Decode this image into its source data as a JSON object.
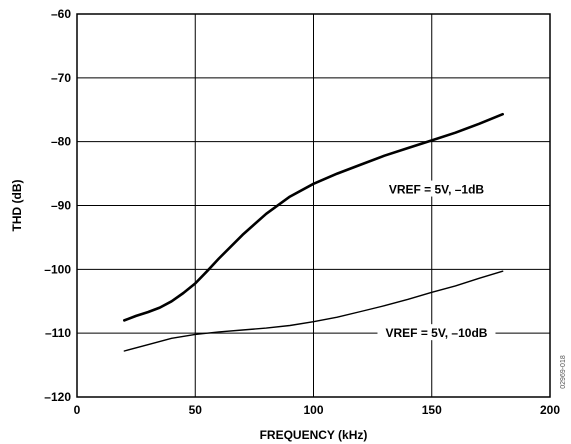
{
  "chart_data": {
    "type": "line",
    "xlabel": "FREQUENCY (kHz)",
    "ylabel": "THD (dB)",
    "xlim": [
      0,
      200
    ],
    "ylim": [
      -120,
      -60
    ],
    "x_ticks": [
      0,
      50,
      100,
      150,
      200
    ],
    "x_tick_labels": [
      "0",
      "50",
      "100",
      "150",
      "200"
    ],
    "y_ticks": [
      -120,
      -110,
      -100,
      -90,
      -80,
      -70,
      -60
    ],
    "y_tick_labels": [
      "–120",
      "–110",
      "–100",
      "–90",
      "–80",
      "–70",
      "–60"
    ],
    "grid": true,
    "series": [
      {
        "name": "VREF = 5V, –1dB",
        "x": [
          20,
          25,
          30,
          35,
          40,
          45,
          50,
          55,
          60,
          70,
          80,
          90,
          100,
          110,
          120,
          130,
          140,
          150,
          160,
          170,
          180
        ],
        "y": [
          -108,
          -107.3,
          -106.7,
          -106,
          -105,
          -103.7,
          -102.2,
          -100.3,
          -98.3,
          -94.6,
          -91.3,
          -88.6,
          -86.6,
          -85,
          -83.6,
          -82.2,
          -81,
          -79.8,
          -78.6,
          -77.2,
          -75.7
        ]
      },
      {
        "name": "VREF = 5V, –10dB",
        "x": [
          20,
          30,
          40,
          50,
          60,
          70,
          80,
          90,
          100,
          110,
          120,
          130,
          140,
          150,
          160,
          170,
          180
        ],
        "y": [
          -112.8,
          -111.8,
          -110.8,
          -110.2,
          -109.8,
          -109.5,
          -109.2,
          -108.8,
          -108.2,
          -107.5,
          -106.6,
          -105.7,
          -104.7,
          -103.6,
          -102.6,
          -101.4,
          -100.3
        ]
      }
    ],
    "annotations": [
      {
        "text": "VREF = 5V, –1dB",
        "x": 152,
        "y": -87.5
      },
      {
        "text": "VREF = 5V, –10dB",
        "x": 152,
        "y": -110
      }
    ],
    "watermark": "02969-018"
  }
}
